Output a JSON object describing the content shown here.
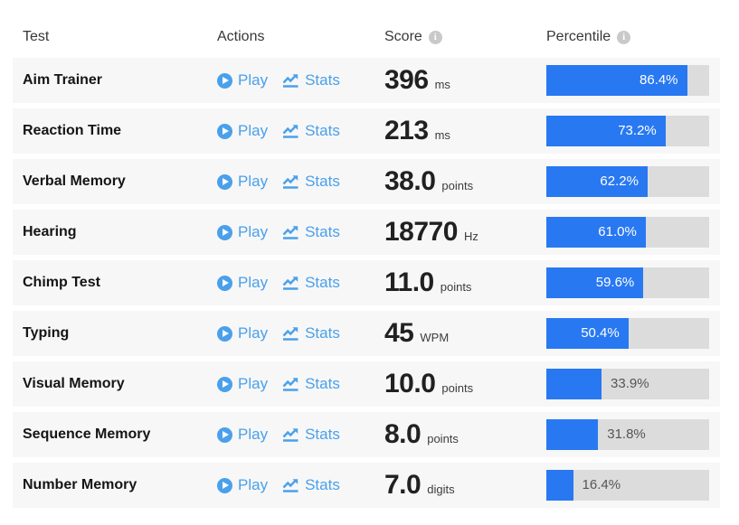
{
  "header": {
    "test": "Test",
    "actions": "Actions",
    "score": "Score",
    "percentile": "Percentile",
    "score_info_glyph": "i",
    "percentile_info_glyph": "i"
  },
  "actions": {
    "play_label": "Play",
    "stats_label": "Stats",
    "play_icon": "circle-play-icon",
    "stats_icon": "line-chart-icon"
  },
  "colors": {
    "bar_fill": "#2878f2",
    "bar_track": "#dcdcdc",
    "row_bg": "#f7f7f7",
    "link_blue": "#4aa0eb"
  },
  "rows": [
    {
      "test": "Aim Trainer",
      "score": "396",
      "unit": "ms",
      "percentile": 86.4,
      "percentile_label": "86.4%"
    },
    {
      "test": "Reaction Time",
      "score": "213",
      "unit": "ms",
      "percentile": 73.2,
      "percentile_label": "73.2%"
    },
    {
      "test": "Verbal Memory",
      "score": "38.0",
      "unit": "points",
      "percentile": 62.2,
      "percentile_label": "62.2%"
    },
    {
      "test": "Hearing",
      "score": "18770",
      "unit": "Hz",
      "percentile": 61.0,
      "percentile_label": "61.0%"
    },
    {
      "test": "Chimp Test",
      "score": "11.0",
      "unit": "points",
      "percentile": 59.6,
      "percentile_label": "59.6%"
    },
    {
      "test": "Typing",
      "score": "45",
      "unit": "WPM",
      "percentile": 50.4,
      "percentile_label": "50.4%"
    },
    {
      "test": "Visual Memory",
      "score": "10.0",
      "unit": "points",
      "percentile": 33.9,
      "percentile_label": "33.9%"
    },
    {
      "test": "Sequence Memory",
      "score": "8.0",
      "unit": "points",
      "percentile": 31.8,
      "percentile_label": "31.8%"
    },
    {
      "test": "Number Memory",
      "score": "7.0",
      "unit": "digits",
      "percentile": 16.4,
      "percentile_label": "16.4%"
    }
  ]
}
